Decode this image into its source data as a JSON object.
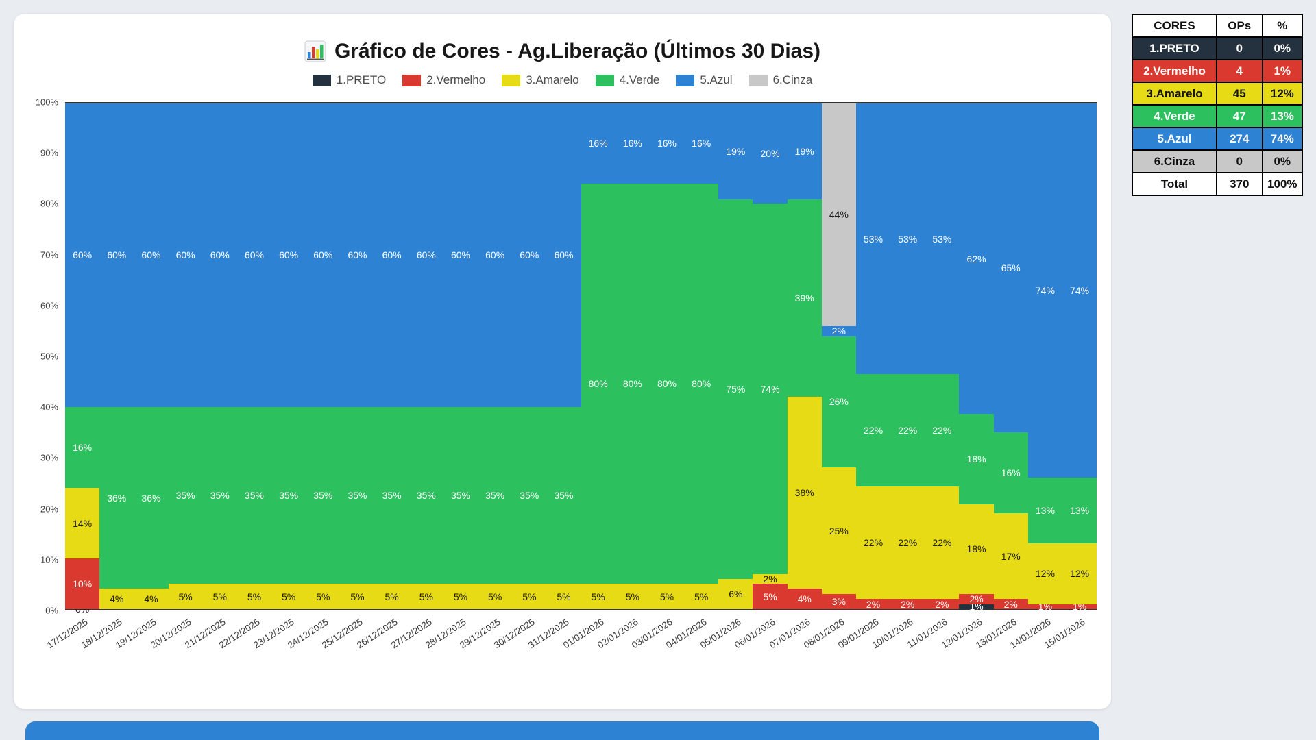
{
  "title": {
    "text": "Gráfico de Cores - Ag.Liberação (Últimos 30 Dias)",
    "icon": "bar-chart-icon"
  },
  "legend": [
    {
      "label": "1.PRETO",
      "color": "#24323f"
    },
    {
      "label": "2.Vermelho",
      "color": "#d9392e"
    },
    {
      "label": "3.Amarelo",
      "color": "#e7db16"
    },
    {
      "label": "4.Verde",
      "color": "#2cc05f"
    },
    {
      "label": "5.Azul",
      "color": "#2e82d3"
    },
    {
      "label": "6.Cinza",
      "color": "#c8c8c8"
    }
  ],
  "chart_data": {
    "type": "bar",
    "stacked": true,
    "percent": true,
    "title": "Gráfico de Cores - Ag.Liberação (Últimos 30 Dias)",
    "ylim": [
      0,
      100
    ],
    "grid": false,
    "legend_position": "top",
    "y_ticks": [
      "100%",
      "90%",
      "80%",
      "70%",
      "60%",
      "50%",
      "40%",
      "30%",
      "20%",
      "10%",
      "0%"
    ],
    "categories": [
      "17/12/2025",
      "18/12/2025",
      "19/12/2025",
      "20/12/2025",
      "21/12/2025",
      "22/12/2025",
      "23/12/2025",
      "24/12/2025",
      "25/12/2025",
      "26/12/2025",
      "27/12/2025",
      "28/12/2025",
      "29/12/2025",
      "30/12/2025",
      "31/12/2025",
      "01/01/2026",
      "02/01/2026",
      "03/01/2026",
      "04/01/2026",
      "05/01/2026",
      "06/01/2026",
      "07/01/2026",
      "08/01/2026",
      "09/01/2026",
      "10/01/2026",
      "11/01/2026",
      "12/01/2026",
      "13/01/2026",
      "14/01/2026",
      "15/01/2026"
    ],
    "series": [
      {
        "name": "1.PRETO",
        "key": "preto",
        "color": "#24323f",
        "text": "#ffffff",
        "values": [
          0,
          null,
          null,
          null,
          null,
          null,
          null,
          null,
          null,
          null,
          null,
          null,
          null,
          null,
          null,
          null,
          null,
          null,
          null,
          null,
          null,
          null,
          null,
          null,
          null,
          null,
          1,
          null,
          null,
          null
        ]
      },
      {
        "name": "2.Vermelho",
        "key": "vermelho",
        "color": "#d9392e",
        "text": "#ffffff",
        "values": [
          10,
          null,
          null,
          null,
          null,
          null,
          null,
          null,
          null,
          null,
          null,
          null,
          null,
          null,
          null,
          null,
          null,
          null,
          null,
          null,
          5,
          4,
          3,
          2,
          2,
          2,
          2,
          2,
          1,
          1
        ]
      },
      {
        "name": "3.Amarelo",
        "key": "amarelo",
        "color": "#e7db16",
        "text": "#1b1b1b",
        "values": [
          14,
          4,
          4,
          5,
          5,
          5,
          5,
          5,
          5,
          5,
          5,
          5,
          5,
          5,
          5,
          5,
          5,
          5,
          5,
          6,
          2,
          38,
          25,
          22,
          22,
          22,
          18,
          17,
          12,
          12
        ]
      },
      {
        "name": "4.Verde",
        "key": "verde",
        "color": "#2cc05f",
        "text": "#ffffff",
        "values": [
          16,
          36,
          36,
          35,
          35,
          35,
          35,
          35,
          35,
          35,
          35,
          35,
          35,
          35,
          35,
          80,
          80,
          80,
          80,
          75,
          74,
          39,
          26,
          22,
          22,
          22,
          18,
          16,
          13,
          13
        ]
      },
      {
        "name": "5.Azul",
        "key": "azul",
        "color": "#2e82d3",
        "text": "#ffffff",
        "values": [
          60,
          60,
          60,
          60,
          60,
          60,
          60,
          60,
          60,
          60,
          60,
          60,
          60,
          60,
          60,
          16,
          16,
          16,
          16,
          19,
          20,
          19,
          2,
          53,
          53,
          53,
          62,
          65,
          74,
          74
        ]
      },
      {
        "name": "6.Cinza",
        "key": "cinza",
        "color": "#c8c8c8",
        "text": "#1b1b1b",
        "values": [
          null,
          null,
          null,
          null,
          null,
          null,
          null,
          null,
          null,
          null,
          null,
          null,
          null,
          null,
          null,
          null,
          null,
          null,
          null,
          null,
          null,
          null,
          44,
          null,
          null,
          null,
          null,
          null,
          null,
          null
        ]
      }
    ]
  },
  "summary_table": {
    "headers": [
      "CORES",
      "OPs",
      "%"
    ],
    "rows": [
      {
        "label": "1.PRETO",
        "ops": "0",
        "pct": "0%",
        "bg": "#24323f",
        "fg": "#ffffff"
      },
      {
        "label": "2.Vermelho",
        "ops": "4",
        "pct": "1%",
        "bg": "#d9392e",
        "fg": "#ffffff"
      },
      {
        "label": "3.Amarelo",
        "ops": "45",
        "pct": "12%",
        "bg": "#e7db16",
        "fg": "#111111"
      },
      {
        "label": "4.Verde",
        "ops": "47",
        "pct": "13%",
        "bg": "#2cc05f",
        "fg": "#ffffff"
      },
      {
        "label": "5.Azul",
        "ops": "274",
        "pct": "74%",
        "bg": "#2e82d3",
        "fg": "#ffffff"
      },
      {
        "label": "6.Cinza",
        "ops": "0",
        "pct": "0%",
        "bg": "#c8c8c8",
        "fg": "#111111"
      },
      {
        "label": "Total",
        "ops": "370",
        "pct": "100%",
        "bg": "#ffffff",
        "fg": "#111111"
      }
    ]
  }
}
